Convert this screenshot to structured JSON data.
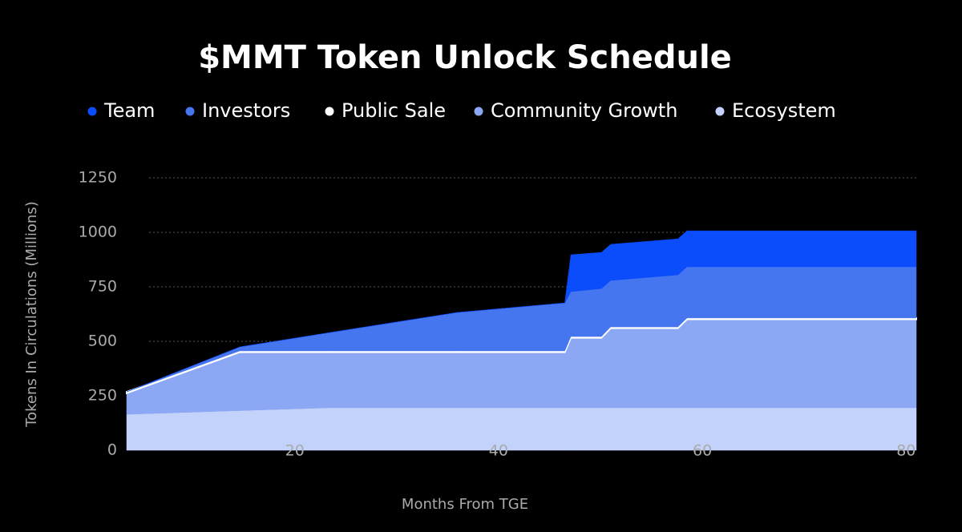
{
  "chart_data": {
    "type": "stacked_area",
    "title": "$MMT Token Unlock Schedule",
    "x_label": "Months From TGE",
    "y_label": "Tokens In Circulations (Millions)",
    "x": [
      3.5,
      14.6,
      23.3,
      35.9,
      46.5,
      47.1,
      50.1,
      51.0,
      57.6,
      58.5,
      81
    ],
    "xlim": [
      3.5,
      81
    ],
    "xticks": [
      20,
      40,
      60,
      80
    ],
    "ylim": [
      0,
      1250
    ],
    "yticks": [
      0,
      250,
      500,
      750,
      1000,
      1250
    ],
    "grid": true,
    "series": [
      {
        "name": "Ecosystem",
        "color": "#c3d2fb",
        "values": [
          165,
          182,
          195,
          195,
          195,
          195,
          195,
          195,
          195,
          195,
          195
        ]
      },
      {
        "name": "Community Growth",
        "color": "#8ca8f4",
        "values": [
          97,
          268,
          255,
          255,
          255,
          321,
          321,
          365,
          365,
          406,
          406
        ]
      },
      {
        "name": "Public Sale",
        "color": "#ffffff",
        "values": [
          6,
          6,
          6,
          6,
          6,
          6,
          6,
          6,
          6,
          6,
          6
        ]
      },
      {
        "name": "Investors",
        "color": "#4675f0",
        "values": [
          0,
          18,
          83,
          176,
          220,
          206,
          220,
          213,
          239,
          235,
          235
        ]
      },
      {
        "name": "Team",
        "color": "#0b4cfb",
        "values": [
          0,
          0,
          0,
          0,
          0,
          169,
          166,
          166,
          165,
          165,
          165
        ]
      }
    ],
    "legend_order": [
      4,
      3,
      2,
      1,
      0
    ]
  }
}
